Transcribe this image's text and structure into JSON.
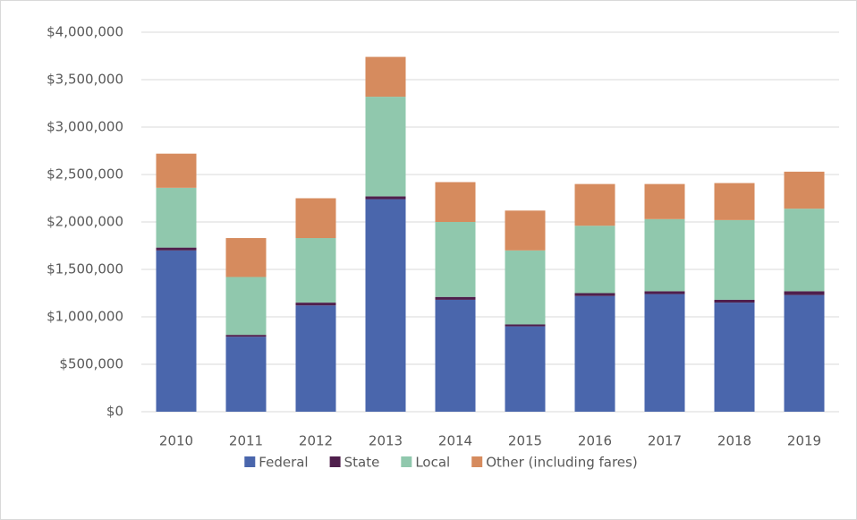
{
  "chart_data": {
    "type": "stacked_bar",
    "categories": [
      "2010",
      "2011",
      "2012",
      "2013",
      "2014",
      "2015",
      "2016",
      "2017",
      "2018",
      "2019"
    ],
    "series": [
      {
        "name": "Federal",
        "color": "#4a66ac",
        "values": [
          1700000,
          790000,
          1120000,
          2240000,
          1180000,
          900000,
          1220000,
          1240000,
          1150000,
          1230000
        ]
      },
      {
        "name": "State",
        "color": "#4f1f4c",
        "values": [
          30000,
          20000,
          30000,
          30000,
          30000,
          20000,
          30000,
          30000,
          30000,
          40000
        ]
      },
      {
        "name": "Local",
        "color": "#90c8ad",
        "values": [
          630000,
          610000,
          680000,
          1050000,
          790000,
          780000,
          710000,
          760000,
          840000,
          870000
        ]
      },
      {
        "name": "Other (including fares)",
        "color": "#d68b5e",
        "values": [
          360000,
          410000,
          420000,
          420000,
          420000,
          420000,
          440000,
          370000,
          390000,
          390000
        ]
      }
    ],
    "ylim": [
      0,
      4000000
    ],
    "yticks": [
      {
        "value": 0,
        "label": "$0"
      },
      {
        "value": 500000,
        "label": "$500,000"
      },
      {
        "value": 1000000,
        "label": "$1,000,000"
      },
      {
        "value": 1500000,
        "label": "$1,500,000"
      },
      {
        "value": 2000000,
        "label": "$2,000,000"
      },
      {
        "value": 2500000,
        "label": "$2,500,000"
      },
      {
        "value": 3000000,
        "label": "$3,000,000"
      },
      {
        "value": 3500000,
        "label": "$3,500,000"
      },
      {
        "value": 4000000,
        "label": "$4,000,000"
      }
    ],
    "grid": true,
    "legend": "bottom"
  }
}
